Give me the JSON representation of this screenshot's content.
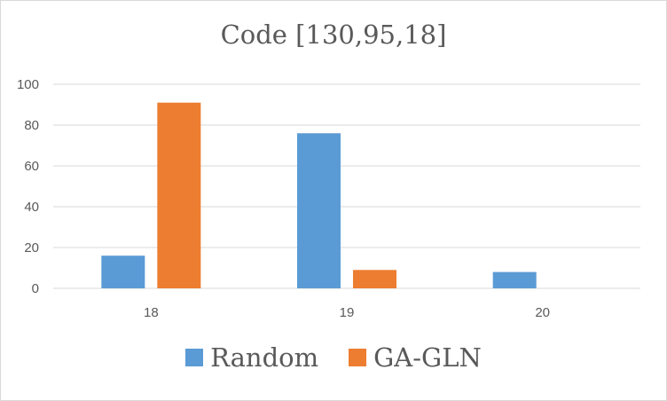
{
  "chart_data": {
    "type": "bar",
    "title": "Code [130,95,18]",
    "categories": [
      "18",
      "19",
      "20"
    ],
    "series": [
      {
        "name": "Random",
        "color": "#5b9bd5",
        "values": [
          16,
          76,
          8
        ]
      },
      {
        "name": "GA-GLN",
        "color": "#ed7d31",
        "values": [
          91,
          9,
          0
        ]
      }
    ],
    "ylim": [
      0,
      100
    ],
    "yticks": [
      0,
      20,
      40,
      60,
      80,
      100
    ],
    "ytick_labels": [
      "0",
      "20",
      "40",
      "60",
      "80",
      "100"
    ],
    "grid": true,
    "legend": "bottom"
  }
}
